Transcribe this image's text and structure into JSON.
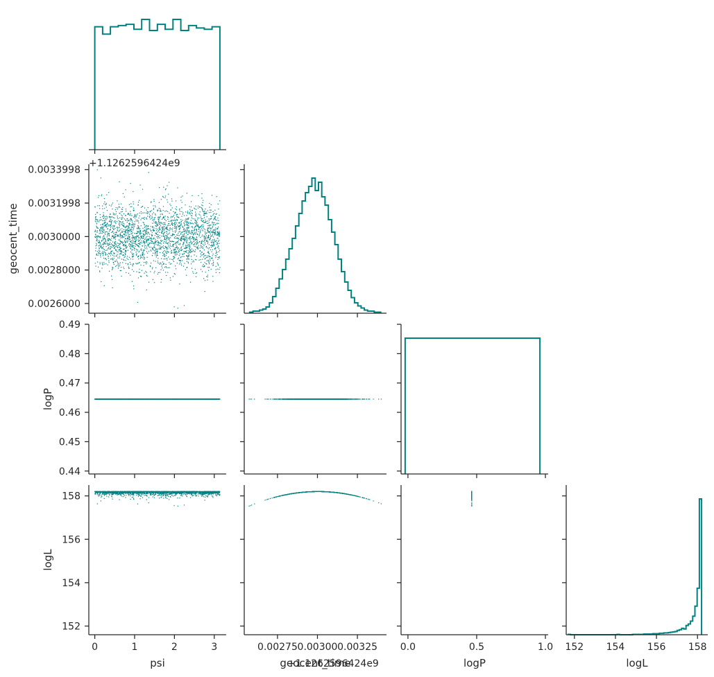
{
  "chart_data": {
    "type": "scatter",
    "title": "",
    "variables": [
      "psi",
      "geocent_time",
      "logP",
      "logL"
    ],
    "axis_labels": {
      "psi": "psi",
      "geocent_time": "geocent_time",
      "logP": "logP",
      "logL": "logL"
    },
    "offset_text": "+1.1262596424e9",
    "color": "#008080",
    "grid": false,
    "ranges": {
      "psi": [
        -0.15,
        3.3
      ],
      "geocent_time": [
        0.002542,
        0.003432
      ],
      "logP": [
        -0.05,
        1.02
      ],
      "logL": [
        151.6,
        158.5
      ]
    },
    "y_ranges": {
      "geocent_time": [
        0.002542,
        0.003432
      ],
      "logP": [
        0.439,
        0.49
      ],
      "logL": [
        151.6,
        158.5
      ]
    },
    "tick_labels": {
      "psi": [
        "0",
        "1",
        "2",
        "3"
      ],
      "geocent_time_x": [
        "0.00275",
        "0.00300",
        "0.00325"
      ],
      "geocent_time_y": [
        "0.0026000",
        "0.0028000",
        "0.0030000",
        "0.0031998",
        "0.0033998"
      ],
      "logP_x": [
        "0.0",
        "0.5",
        "1.0"
      ],
      "logP_y": [
        "0.44",
        "0.45",
        "0.46",
        "0.47",
        "0.48",
        "0.49"
      ],
      "logL": [
        "152",
        "154",
        "156",
        "158"
      ]
    },
    "constant_logP": 0.4645,
    "histograms": {
      "psi": {
        "bins": 16,
        "range": [
          0,
          3.1416
        ],
        "counts": [
          100,
          94,
          100,
          101,
          102,
          98,
          106,
          97,
          102,
          98,
          106,
          97,
          101,
          99,
          98,
          100
        ]
      },
      "geocent_time": {
        "bins": 40,
        "range": [
          0.002576,
          0.003396
        ],
        "counts": [
          1,
          2,
          2,
          3,
          4,
          6,
          10,
          16,
          24,
          33,
          42,
          52,
          62,
          72,
          84,
          96,
          108,
          116,
          122,
          130,
          118,
          126,
          112,
          104,
          90,
          78,
          66,
          52,
          40,
          30,
          22,
          15,
          10,
          7,
          5,
          3,
          2,
          2,
          1,
          1
        ]
      },
      "logP": {
        "bins": 1,
        "range": [
          -0.02,
          0.96
        ],
        "counts": [
          1
        ]
      },
      "logL": {
        "bins": 60,
        "range": [
          151.7,
          158.2
        ],
        "counts": [
          1,
          0,
          0,
          0,
          0,
          0,
          0,
          0,
          0,
          0,
          0,
          0,
          0,
          0,
          0,
          0,
          0,
          0,
          0,
          0,
          0,
          0,
          1,
          0,
          0,
          0,
          0,
          0,
          0,
          1,
          1,
          1,
          1,
          1,
          2,
          2,
          2,
          2,
          3,
          3,
          3,
          4,
          4,
          5,
          5,
          6,
          7,
          8,
          9,
          12,
          14,
          18,
          16,
          26,
          30,
          38,
          52,
          80,
          130,
          380
        ]
      }
    },
    "scatter_points_per_panel": 2600
  }
}
